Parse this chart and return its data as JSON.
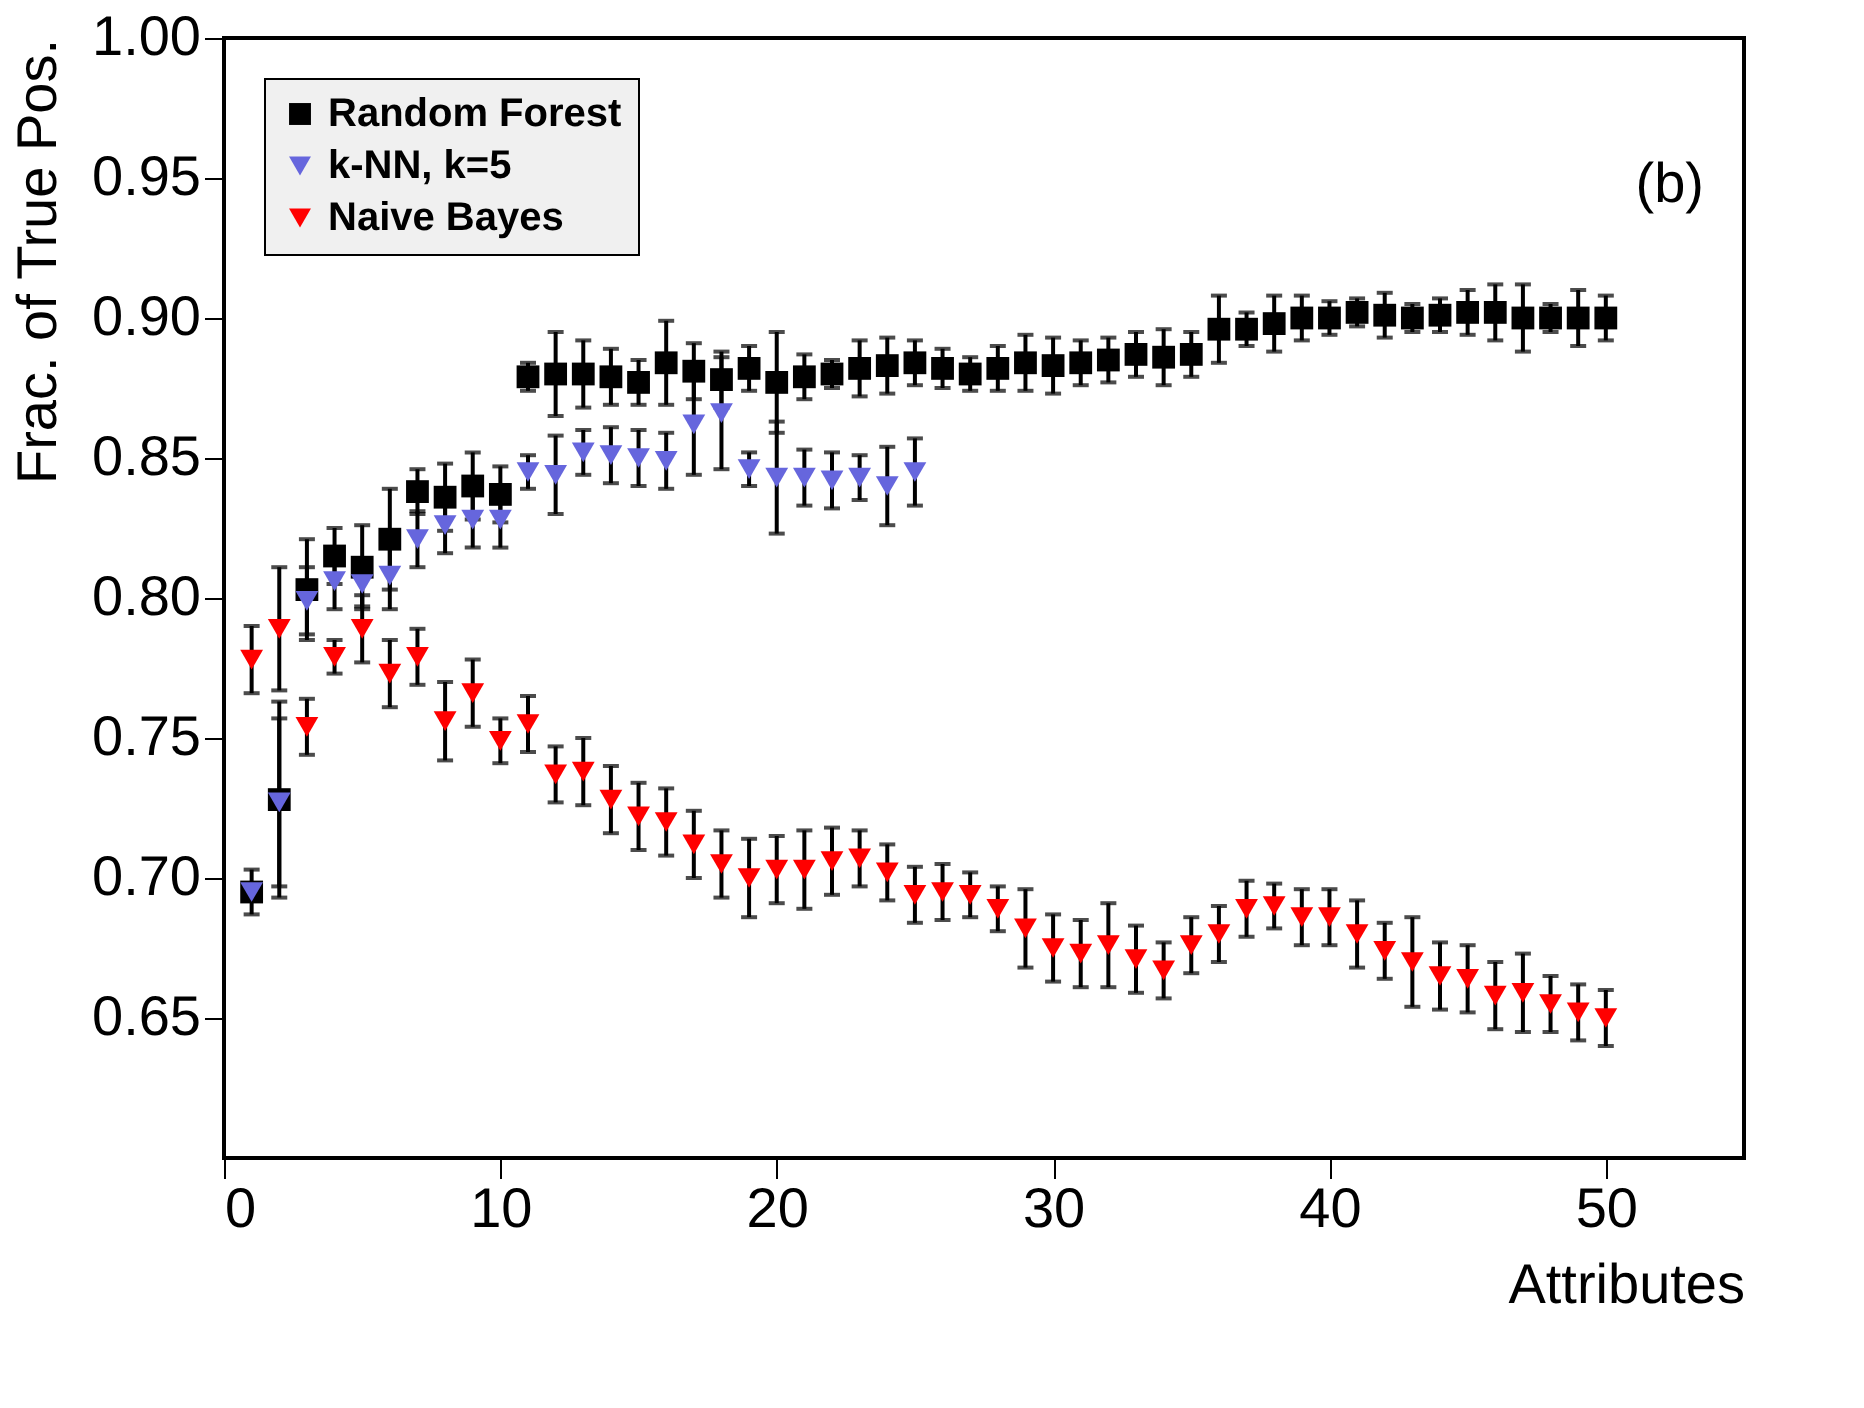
{
  "chart_data": {
    "type": "scatter",
    "xlabel": "Attributes",
    "ylabel": "Frac. of True Pos.",
    "xlim": [
      0,
      55
    ],
    "ylim": [
      0.6,
      1.0
    ],
    "xticks": [
      0,
      10,
      20,
      30,
      40,
      50
    ],
    "yticks": [
      0.65,
      {
        "value": 0.7,
        "label": "0.70"
      },
      0.75,
      {
        "value": 0.8,
        "label": "0.80"
      },
      0.85,
      {
        "value": 0.9,
        "label": "0.90"
      },
      0.95,
      {
        "value": 1.0,
        "label": "1.00"
      }
    ],
    "grid": false,
    "legend": "top left",
    "annotations": [
      "(b)"
    ],
    "x": [
      1,
      2,
      3,
      4,
      5,
      6,
      7,
      8,
      9,
      10,
      11,
      12,
      13,
      14,
      15,
      16,
      17,
      18,
      19,
      20,
      21,
      22,
      23,
      24,
      25,
      26,
      27,
      28,
      29,
      30,
      31,
      32,
      33,
      34,
      35,
      36,
      37,
      38,
      39,
      40,
      41,
      42,
      43,
      44,
      45,
      46,
      47,
      48,
      49,
      50
    ],
    "series": [
      {
        "name": "Random Forest",
        "color": "#000000",
        "marker": "square",
        "values": [
          0.695,
          0.728,
          0.803,
          0.815,
          0.811,
          0.821,
          0.838,
          0.836,
          0.84,
          0.837,
          0.879,
          0.88,
          0.88,
          0.879,
          0.877,
          0.884,
          0.881,
          0.878,
          0.882,
          0.877,
          0.879,
          0.88,
          0.882,
          0.883,
          0.884,
          0.882,
          0.88,
          0.882,
          0.884,
          0.883,
          0.884,
          0.885,
          0.887,
          0.886,
          0.887,
          0.896,
          0.896,
          0.898,
          0.9,
          0.9,
          0.902,
          0.901,
          0.9,
          0.901,
          0.902,
          0.902,
          0.9,
          0.9,
          0.9,
          0.9
        ],
        "errors": [
          0.008,
          0.035,
          0.018,
          0.01,
          0.015,
          0.018,
          0.008,
          0.012,
          0.012,
          0.01,
          0.005,
          0.015,
          0.012,
          0.01,
          0.008,
          0.015,
          0.01,
          0.01,
          0.008,
          0.018,
          0.008,
          0.005,
          0.01,
          0.01,
          0.008,
          0.007,
          0.006,
          0.008,
          0.01,
          0.01,
          0.008,
          0.008,
          0.008,
          0.01,
          0.008,
          0.012,
          0.006,
          0.01,
          0.008,
          0.006,
          0.005,
          0.008,
          0.005,
          0.006,
          0.008,
          0.01,
          0.012,
          0.005,
          0.01,
          0.008
        ]
      },
      {
        "name": "k-NN, k=5",
        "color": "#6666dd",
        "marker": "triangle",
        "x": [
          1,
          2,
          3,
          4,
          5,
          6,
          7,
          8,
          9,
          10,
          11,
          12,
          13,
          14,
          15,
          16,
          17,
          18,
          19,
          20,
          21,
          22,
          23,
          24,
          25
        ],
        "values": [
          0.695,
          0.727,
          0.799,
          0.806,
          0.805,
          0.808,
          0.821,
          0.826,
          0.828,
          0.828,
          0.845,
          0.844,
          0.852,
          0.851,
          0.85,
          0.849,
          0.862,
          0.866,
          0.846,
          0.843,
          0.843,
          0.842,
          0.843,
          0.84,
          0.845
        ],
        "errors": [
          null,
          0.03,
          0.012,
          0.01,
          0.008,
          0.012,
          0.01,
          0.01,
          0.01,
          0.01,
          0.006,
          0.014,
          0.008,
          0.01,
          0.01,
          0.01,
          0.018,
          0.02,
          0.006,
          0.02,
          0.01,
          0.01,
          0.008,
          0.014,
          0.012
        ]
      },
      {
        "name": "Naive Bayes",
        "color": "#ff0000",
        "marker": "triangle",
        "values": [
          0.778,
          0.789,
          0.754,
          0.779,
          0.789,
          0.773,
          0.779,
          0.756,
          0.766,
          0.749,
          0.755,
          0.737,
          0.738,
          0.728,
          0.722,
          0.72,
          0.712,
          0.705,
          0.7,
          0.703,
          0.703,
          0.706,
          0.707,
          0.702,
          0.694,
          0.695,
          0.694,
          0.689,
          0.682,
          0.675,
          0.673,
          0.676,
          0.671,
          0.667,
          0.676,
          0.68,
          0.689,
          0.69,
          0.686,
          0.686,
          0.68,
          0.674,
          0.67,
          0.665,
          0.664,
          0.658,
          0.659,
          0.655,
          0.652,
          0.65
        ],
        "errors": [
          0.012,
          0.022,
          0.01,
          0.006,
          0.012,
          0.012,
          0.01,
          0.014,
          0.012,
          0.008,
          0.01,
          0.01,
          0.012,
          0.012,
          0.012,
          0.012,
          0.012,
          0.012,
          0.014,
          0.012,
          0.014,
          0.012,
          0.01,
          0.01,
          0.01,
          0.01,
          0.008,
          0.008,
          0.014,
          0.012,
          0.012,
          0.015,
          0.012,
          0.01,
          0.01,
          0.01,
          0.01,
          0.008,
          0.01,
          0.01,
          0.012,
          0.01,
          0.016,
          0.012,
          0.012,
          0.012,
          0.014,
          0.01,
          0.01,
          0.01
        ]
      }
    ]
  }
}
